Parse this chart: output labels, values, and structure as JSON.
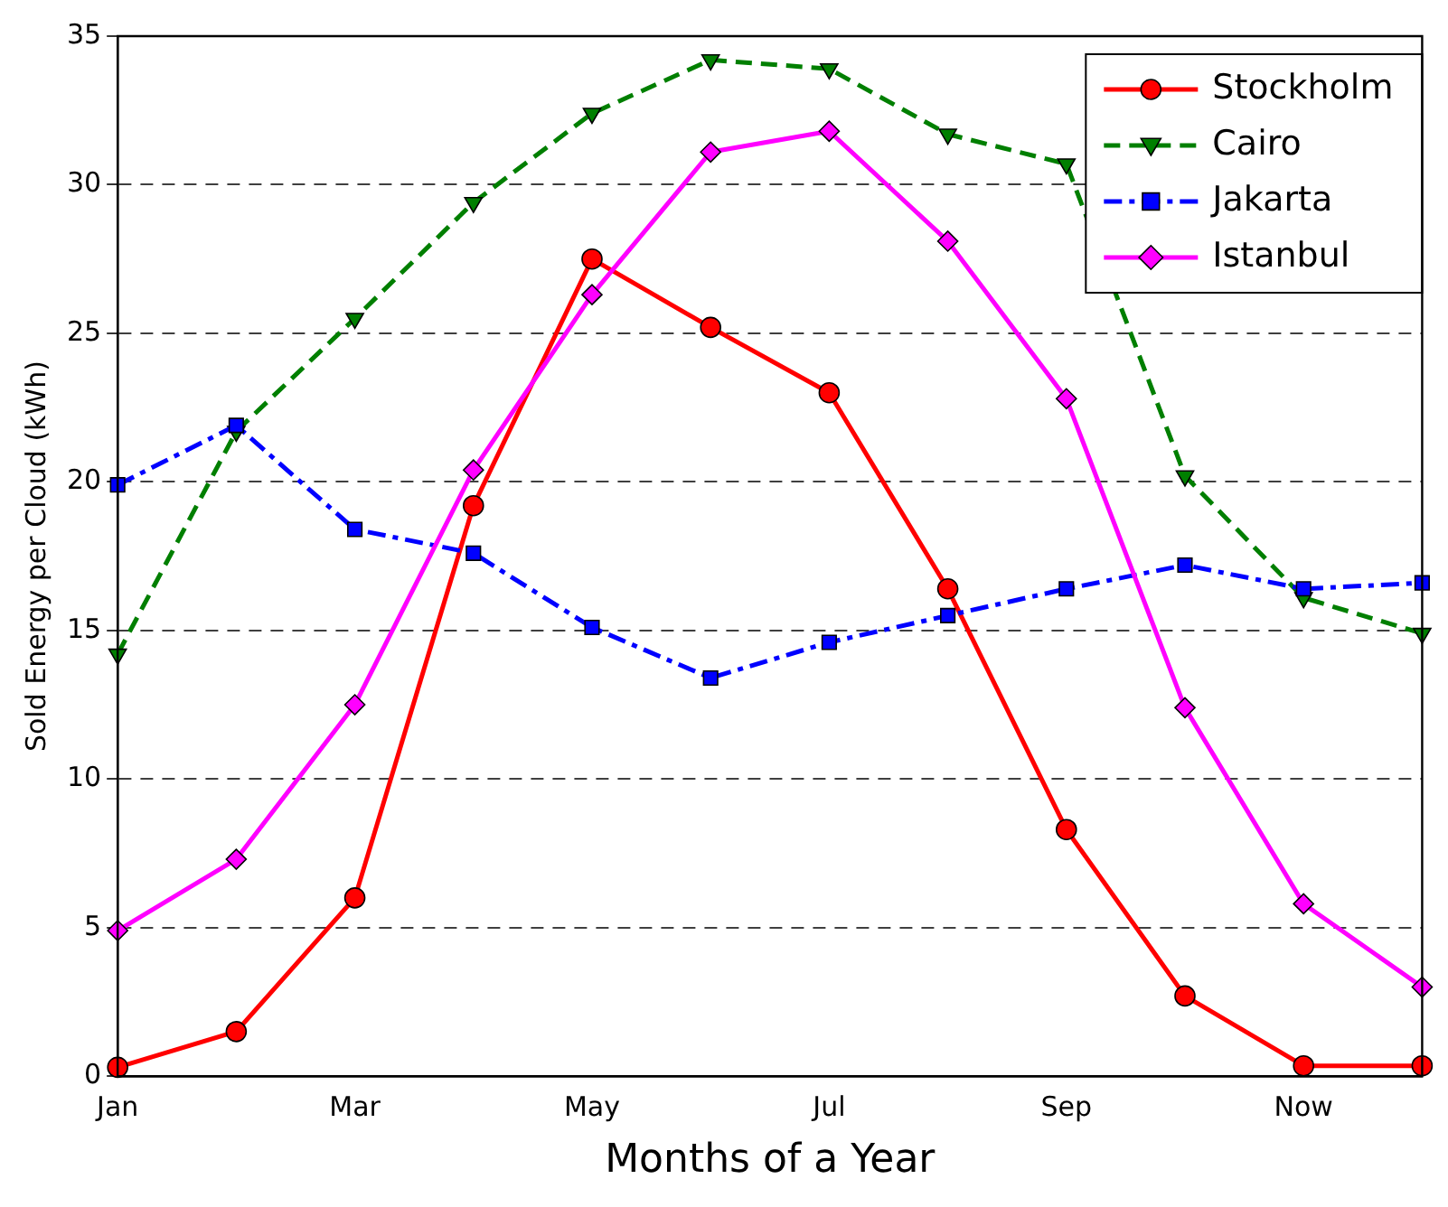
{
  "chart_data": {
    "type": "line",
    "xlabel": "Months of a Year",
    "ylabel": "Sold Energy per Cloud (kWh)",
    "categories": [
      "Jan",
      null,
      "Mar",
      null,
      "May",
      null,
      "Jul",
      null,
      "Sep",
      null,
      "Now",
      null
    ],
    "ylim": [
      0,
      35
    ],
    "yticks": [
      0,
      5,
      10,
      15,
      20,
      25,
      30,
      35
    ],
    "grid": "y",
    "legend": "top right",
    "series": [
      {
        "name": "Stockholm",
        "color": "#ff0000",
        "marker": "circle",
        "line_style": "solid",
        "values": [
          0.3,
          1.5,
          6,
          19.2,
          27.5,
          25.2,
          23,
          16.4,
          8.3,
          2.7,
          0.35,
          0.35
        ]
      },
      {
        "name": "Cairo",
        "color": "#007f00",
        "marker": "triangle",
        "line_style": "dashed",
        "values": [
          14.2,
          21.7,
          25.5,
          29.4,
          32.4,
          34.2,
          33.9,
          31.7,
          30.7,
          20.2,
          16.1,
          14.9
        ]
      },
      {
        "name": "Jakarta",
        "color": "#0000ff",
        "marker": "square",
        "line_style": "dotted",
        "values": [
          19.9,
          21.9,
          18.4,
          17.6,
          15.1,
          13.4,
          14.6,
          15.5,
          16.4,
          17.2,
          16.4,
          16.6
        ]
      },
      {
        "name": "Istanbul",
        "color": "#ff00ff",
        "marker": "diamond",
        "line_style": "solid",
        "values": [
          4.9,
          7.3,
          12.5,
          20.4,
          26.3,
          31.1,
          31.8,
          28.1,
          22.8,
          12.4,
          5.8,
          3.0
        ]
      }
    ]
  }
}
